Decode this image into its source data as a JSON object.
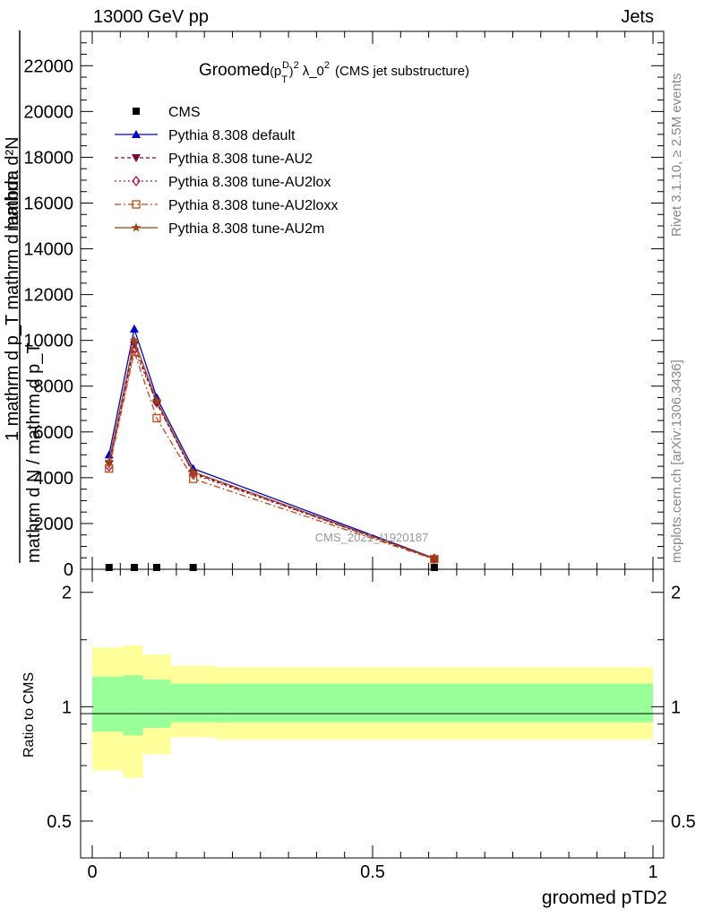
{
  "header": {
    "left": "13000 GeV pp",
    "right": "Jets"
  },
  "side_labels": {
    "rivet": "Rivet 3.1.10, ≥ 2.5M events",
    "mcplots": "mcplots.cern.ch [arXiv:1306.3436]"
  },
  "watermark": "CMS_2021_I1920187",
  "chart_data": {
    "type": "line",
    "title": "Groomed(p_T^D)^2 λ_0^2 (CMS jet substructure)",
    "title_parts": {
      "pre": "Groomed",
      "base": "p",
      "sup": "D",
      "sub": "T",
      "exp": "2",
      "post": "λ_0",
      "post_exp": "2",
      "tail": "(CMS jet substructure)"
    },
    "ylabel": "1 / mathrm d N / mathrm d p_T mathrm d p_T mathrm d lambda",
    "ylabel_lines": [
      "mathrm d²N",
      "1 mathrm d p_T mathrm d lambda",
      "mathrm d N / mathrm d p_T"
    ],
    "xlabel": "groomed pTD2",
    "ratio_ylabel": "Ratio to CMS",
    "xlim": [
      0,
      1
    ],
    "ylim": [
      0,
      23500
    ],
    "ratio_ylim": [
      0.4,
      2.3
    ],
    "x_ticks": [
      "0",
      "0.5",
      "1"
    ],
    "x_tick_values": [
      0,
      0.5,
      1
    ],
    "y_ticks": [
      "0",
      "2000",
      "4000",
      "6000",
      "8000",
      "10000",
      "12000",
      "14000",
      "16000",
      "18000",
      "20000",
      "22000"
    ],
    "y_tick_values": [
      0,
      2000,
      4000,
      6000,
      8000,
      10000,
      12000,
      14000,
      16000,
      18000,
      20000,
      22000
    ],
    "ratio_ticks": [
      "0.5",
      "1",
      "2"
    ],
    "ratio_tick_values": [
      0.5,
      1,
      2
    ],
    "x": [
      0.03,
      0.075,
      0.115,
      0.18,
      0.61
    ],
    "bin_edges": [
      0,
      0.055,
      0.09,
      0.14,
      0.22,
      1
    ],
    "cms": [
      0,
      0,
      0,
      0,
      0
    ],
    "series": [
      {
        "name": "CMS",
        "color": "#000000",
        "marker": "square",
        "dash": "",
        "values": [
          0,
          0,
          0,
          0,
          0
        ]
      },
      {
        "name": "Pythia 8.308 default",
        "color": "#0000cc",
        "marker": "triangle-up",
        "dash": "",
        "values": [
          5000,
          10500,
          7500,
          4400,
          480
        ]
      },
      {
        "name": "Pythia 8.308 tune-AU2",
        "color": "#800033",
        "marker": "triangle-down",
        "dash": "4,3",
        "values": [
          4600,
          9800,
          7250,
          4200,
          450
        ]
      },
      {
        "name": "Pythia 8.308 tune-AU2lox",
        "color": "#aa1144",
        "marker": "diamond",
        "dash": "2,3",
        "values": [
          4500,
          9600,
          7300,
          4150,
          460
        ]
      },
      {
        "name": "Pythia 8.308 tune-AU2loxx",
        "color": "#cc4411",
        "marker": "open-square",
        "dash": "7,3,2,3",
        "values": [
          4400,
          9500,
          6600,
          3950,
          440
        ]
      },
      {
        "name": "Pythia 8.308 tune-AU2m",
        "color": "#994411",
        "marker": "star",
        "dash": "",
        "values": [
          4700,
          10000,
          7350,
          4250,
          470
        ]
      }
    ],
    "ratio_bands": {
      "inner_color": "#99ff99",
      "outer_color": "#ffff99",
      "inner": [
        [
          0.86,
          1.2
        ],
        [
          0.84,
          1.21
        ],
        [
          0.88,
          1.18
        ],
        [
          0.91,
          1.15
        ],
        [
          0.91,
          1.15
        ]
      ],
      "outer": [
        [
          0.68,
          1.43
        ],
        [
          0.65,
          1.45
        ],
        [
          0.75,
          1.37
        ],
        [
          0.83,
          1.28
        ],
        [
          0.82,
          1.27
        ]
      ]
    }
  }
}
